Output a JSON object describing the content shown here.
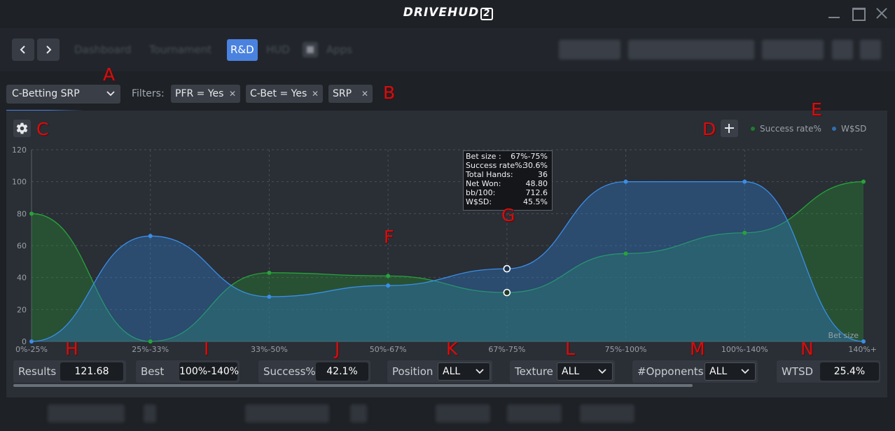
{
  "app": {
    "logo": "DRIVEHUD",
    "logo_badge": "2"
  },
  "nav": {
    "tabs": [
      {
        "label": "Dashboard",
        "active": false
      },
      {
        "label": "Tournament",
        "active": false
      },
      {
        "label": "R&D",
        "active": true
      },
      {
        "label": "HUD",
        "active": false
      },
      {
        "label": "Apps",
        "active": false
      }
    ]
  },
  "toolbar": {
    "preset": "C-Betting SRP",
    "filters_label": "Filters:",
    "chips": [
      "PFR = Yes",
      "C-Bet = Yes",
      "SRP"
    ]
  },
  "markers": [
    "A",
    "B",
    "C",
    "D",
    "E",
    "F",
    "G",
    "H",
    "I",
    "J",
    "K",
    "L",
    "M",
    "N"
  ],
  "legend": [
    {
      "name": "Success rate%",
      "color": "#1e7d2e"
    },
    {
      "name": "W$SD",
      "color": "#2f6fb0"
    }
  ],
  "chart_data": {
    "type": "area",
    "xlabel": "Bet size",
    "categories": [
      "0%-25%",
      "25%-33%",
      "33%-50%",
      "50%-67%",
      "67%-75%",
      "75%-100%",
      "100%-140%",
      "140%+"
    ],
    "ylim": [
      0,
      120
    ],
    "yticks": [
      0,
      20,
      40,
      60,
      80,
      100,
      120
    ],
    "grid": true,
    "legend_position": "top-right",
    "series": [
      {
        "name": "Success rate%",
        "color": "#27a33a",
        "values": [
          80,
          0,
          43,
          41,
          30.6,
          55,
          68,
          100
        ]
      },
      {
        "name": "W$SD",
        "color": "#3a8ee6",
        "values": [
          0,
          66,
          28,
          35,
          45.5,
          100,
          100,
          0
        ]
      }
    ],
    "highlight_index": 4
  },
  "tooltip": {
    "rows": [
      {
        "label": "Bet size :",
        "value": "67%-75%"
      },
      {
        "label": "Success rate%:",
        "value": "30.6%"
      },
      {
        "label": "Total Hands:",
        "value": "36"
      },
      {
        "label": "Net Won:",
        "value": "48.80"
      },
      {
        "label": "bb/100:",
        "value": "712.6"
      },
      {
        "label": "W$SD:",
        "value": "45.5%"
      }
    ]
  },
  "stats": {
    "results": {
      "label": "Results",
      "value": "121.68"
    },
    "best": {
      "label": "Best",
      "value": "100%-140%"
    },
    "success": {
      "label": "Success%",
      "value": "42.1%"
    },
    "position": {
      "label": "Position",
      "value": "ALL"
    },
    "texture": {
      "label": "Texture",
      "value": "ALL"
    },
    "opponents": {
      "label": "#Opponents",
      "value": "ALL"
    },
    "wtsd": {
      "label": "WTSD",
      "value": "25.4%"
    }
  }
}
